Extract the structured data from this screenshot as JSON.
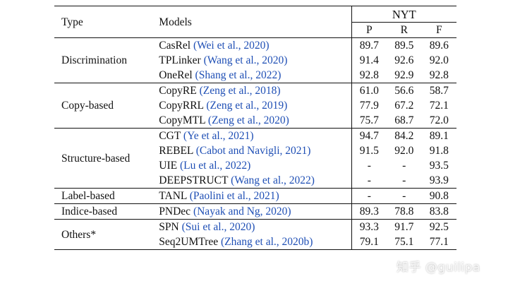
{
  "header": {
    "type": "Type",
    "models": "Models",
    "dataset": "NYT",
    "metrics": [
      "P",
      "R",
      "F"
    ]
  },
  "groups": [
    {
      "type": "Discrimination",
      "rows": [
        {
          "model": "CasRel",
          "cite": "(Wei et al., 2020)",
          "p": "89.7",
          "r": "89.5",
          "f": "89.6"
        },
        {
          "model": "TPLinker",
          "cite": "(Wang et al., 2020)",
          "p": "91.4",
          "r": "92.6",
          "f": "92.0"
        },
        {
          "model": "OneRel",
          "cite": "(Shang et al., 2022)",
          "p": "92.8",
          "r": "92.9",
          "f": "92.8"
        }
      ]
    },
    {
      "type": "Copy-based",
      "rows": [
        {
          "model": "CopyRE",
          "cite": "(Zeng et al., 2018)",
          "p": "61.0",
          "r": "56.6",
          "f": "58.7"
        },
        {
          "model": "CopyRRL",
          "cite": "(Zeng et al., 2019)",
          "p": "77.9",
          "r": "67.2",
          "f": "72.1"
        },
        {
          "model": "CopyMTL",
          "cite": "(Zeng et al., 2020)",
          "p": "75.7",
          "r": "68.7",
          "f": "72.0"
        }
      ]
    },
    {
      "type": "Structure-based",
      "rows": [
        {
          "model": "CGT",
          "cite": "(Ye et al., 2021)",
          "p": "94.7",
          "r": "84.2",
          "f": "89.1"
        },
        {
          "model": "REBEL",
          "cite": "(Cabot and Navigli, 2021)",
          "p": "91.5",
          "r": "92.0",
          "f": "91.8"
        },
        {
          "model": "UIE",
          "cite": "(Lu et al., 2022)",
          "p": "-",
          "r": "-",
          "f": "93.5"
        },
        {
          "model": "DEEPSTRUCT",
          "cite": "(Wang et al., 2022)",
          "p": "-",
          "r": "-",
          "f": "93.9"
        }
      ]
    },
    {
      "type": "Label-based",
      "rows": [
        {
          "model": "TANL",
          "cite": "(Paolini et al., 2021)",
          "p": "-",
          "r": "-",
          "f": "90.8"
        }
      ]
    },
    {
      "type": "Indice-based",
      "rows": [
        {
          "model": "PNDec",
          "cite": "(Nayak and Ng, 2020)",
          "p": "89.3",
          "r": "78.8",
          "f": "83.8"
        }
      ]
    },
    {
      "type": "Others*",
      "rows": [
        {
          "model": "SPN",
          "cite": "(Sui et al., 2020)",
          "p": "93.3",
          "r": "91.7",
          "f": "92.5"
        },
        {
          "model": "Seq2UMTree",
          "cite": "(Zhang et al., 2020b)",
          "p": "79.1",
          "r": "75.1",
          "f": "77.1"
        }
      ]
    }
  ],
  "watermark": "知乎 @guilipa"
}
